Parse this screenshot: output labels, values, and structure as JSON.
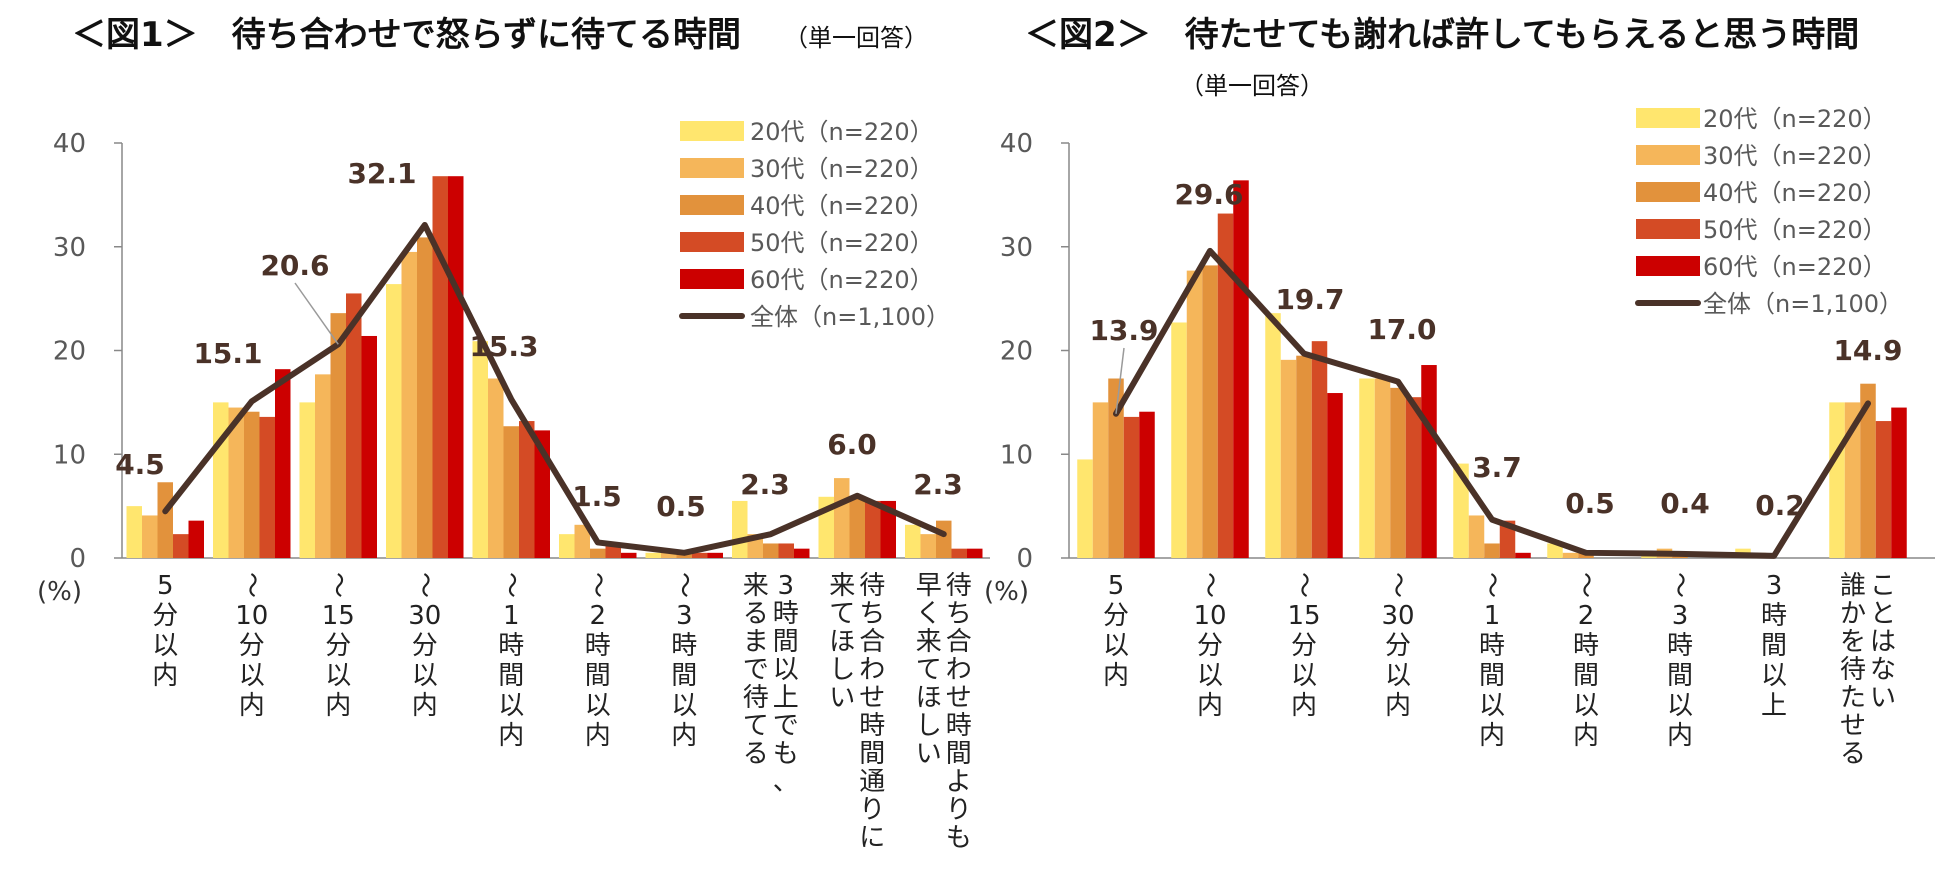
{
  "colors": {
    "20s": "#ffe66e",
    "30s": "#f5b65a",
    "40s": "#e2923c",
    "50s": "#d44b25",
    "60s": "#cc0000",
    "total": "#4a3228",
    "axis": "#888888",
    "leader": "#9a9a9a"
  },
  "chart_data": [
    {
      "type": "bar",
      "title": "＜図1＞　待ち合わせで怒らずに待てる時間",
      "subtitle": "（単一回答）",
      "y_unit": "(%)",
      "ylim": [
        0,
        40
      ],
      "yticks": [
        "0",
        "10",
        "20",
        "30",
        "40"
      ],
      "grid": false,
      "legend_position": "top-right",
      "categories": [
        [
          "5",
          "分",
          "以",
          "内"
        ],
        [
          "〜",
          "10",
          "分",
          "以",
          "内"
        ],
        [
          "〜",
          "15",
          "分",
          "以",
          "内"
        ],
        [
          "〜",
          "30",
          "分",
          "以",
          "内"
        ],
        [
          "〜",
          "1",
          "時",
          "間",
          "以",
          "内"
        ],
        [
          "〜",
          "2",
          "時",
          "間",
          "以",
          "内"
        ],
        [
          "〜",
          "3",
          "時",
          "間",
          "以",
          "内"
        ],
        [
          "来るまで待てる",
          "3時間以上でも、"
        ],
        [
          "来てほしい",
          "待ち合わせ時間通りに"
        ],
        [
          "早く来てほしい",
          "待ち合わせ時間よりも"
        ]
      ],
      "series": [
        {
          "name": "20代（n=220）",
          "color_key": "20s",
          "values": [
            5.0,
            15.0,
            15.0,
            26.4,
            20.9,
            2.3,
            0.5,
            5.5,
            5.9,
            3.2
          ]
        },
        {
          "name": "30代（n=220）",
          "color_key": "30s",
          "values": [
            4.1,
            14.5,
            17.7,
            29.5,
            17.3,
            3.2,
            0.5,
            2.3,
            7.7,
            2.3
          ]
        },
        {
          "name": "40代（n=220）",
          "color_key": "40s",
          "values": [
            7.3,
            14.1,
            23.6,
            30.9,
            12.7,
            0.9,
            0.5,
            1.4,
            5.9,
            3.6
          ]
        },
        {
          "name": "50代（n=220）",
          "color_key": "50s",
          "values": [
            2.3,
            13.6,
            25.5,
            36.8,
            13.2,
            1.4,
            0.5,
            1.4,
            5.5,
            0.9
          ]
        },
        {
          "name": "60代（n=220）",
          "color_key": "60s",
          "values": [
            3.6,
            18.2,
            21.4,
            36.8,
            12.3,
            0.5,
            0.5,
            0.9,
            5.5,
            0.9
          ]
        }
      ],
      "total": {
        "name": "全体（n=1,100）",
        "values": [
          4.5,
          15.1,
          20.6,
          32.1,
          15.3,
          1.5,
          0.5,
          2.3,
          6.0,
          2.3
        ]
      },
      "total_labels": [
        "4.5",
        "15.1",
        "20.6",
        "32.1",
        "15.3",
        "1.5",
        "0.5",
        "2.3",
        "6.0",
        "2.3"
      ]
    },
    {
      "type": "bar",
      "title": "＜図2＞　待たせても謝れば許してもらえると思う時間",
      "subtitle": "（単一回答）",
      "y_unit": "(%)",
      "ylim": [
        0,
        40
      ],
      "yticks": [
        "0",
        "10",
        "20",
        "30",
        "40"
      ],
      "grid": false,
      "legend_position": "top-right",
      "categories": [
        [
          "5",
          "分",
          "以",
          "内"
        ],
        [
          "〜",
          "10",
          "分",
          "以",
          "内"
        ],
        [
          "〜",
          "15",
          "分",
          "以",
          "内"
        ],
        [
          "〜",
          "30",
          "分",
          "以",
          "内"
        ],
        [
          "〜",
          "1",
          "時",
          "間",
          "以",
          "内"
        ],
        [
          "〜",
          "2",
          "時",
          "間",
          "以",
          "内"
        ],
        [
          "〜",
          "3",
          "時",
          "間",
          "以",
          "内"
        ],
        [
          "3",
          "時",
          "間",
          "以",
          "上"
        ],
        [
          "誰かを待たせる",
          "ことはない"
        ]
      ],
      "series": [
        {
          "name": "20代（n=220）",
          "color_key": "20s",
          "values": [
            9.5,
            22.7,
            23.6,
            17.3,
            9.1,
            1.4,
            0.5,
            0.9,
            15.0
          ]
        },
        {
          "name": "30代（n=220）",
          "color_key": "30s",
          "values": [
            15.0,
            27.7,
            19.1,
            17.3,
            4.1,
            0.5,
            0.9,
            0.5,
            15.0
          ]
        },
        {
          "name": "40代（n=220）",
          "color_key": "40s",
          "values": [
            17.3,
            28.2,
            19.5,
            16.4,
            1.4,
            0.5,
            0.5,
            0.0,
            16.8
          ]
        },
        {
          "name": "50代（n=220）",
          "color_key": "50s",
          "values": [
            13.6,
            33.2,
            20.9,
            15.5,
            3.6,
            0.0,
            0.0,
            0.0,
            13.2
          ]
        },
        {
          "name": "60代（n=220）",
          "color_key": "60s",
          "values": [
            14.1,
            36.4,
            15.9,
            18.6,
            0.5,
            0.0,
            0.0,
            0.0,
            14.5
          ]
        }
      ],
      "total": {
        "name": "全体（n=1,100）",
        "values": [
          13.9,
          29.6,
          19.7,
          17.0,
          3.7,
          0.5,
          0.4,
          0.2,
          14.9
        ]
      },
      "total_labels": [
        "13.9",
        "29.6",
        "19.7",
        "17.0",
        "3.7",
        "0.5",
        "0.4",
        "0.2",
        "14.9"
      ]
    }
  ]
}
